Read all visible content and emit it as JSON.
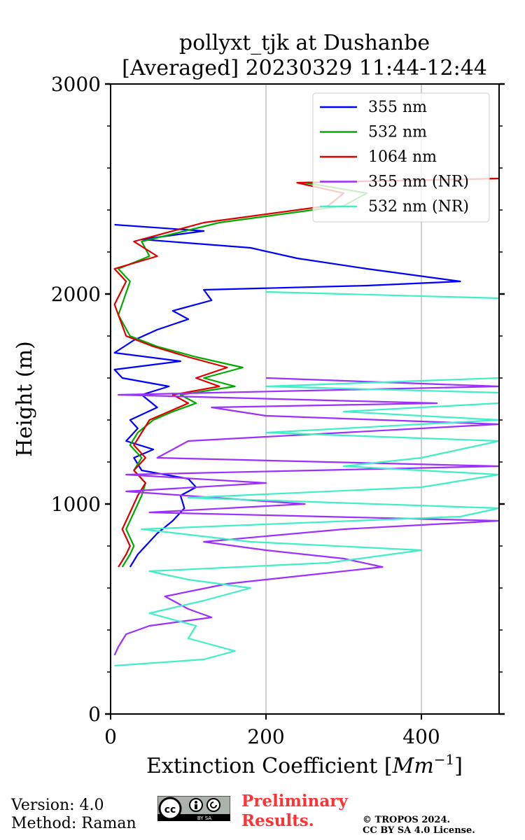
{
  "chart_data": {
    "type": "line",
    "title_line1": "pollyxt_tjk at Dushanbe",
    "title_line2": "[Averaged] 20230329 11:44-12:44",
    "xlabel": "Extinction Coefficient",
    "xlabel_unit_base": "Mm",
    "xlabel_unit_exp": "−1",
    "ylabel": "Height (m)",
    "xlim": [
      0,
      500
    ],
    "ylim": [
      0,
      3000
    ],
    "x_ticks": [
      "0",
      "200",
      "400"
    ],
    "x_tick_values": [
      0,
      200,
      400
    ],
    "y_ticks": [
      "0",
      "1000",
      "2000",
      "3000"
    ],
    "y_tick_values": [
      0,
      1000,
      2000,
      3000
    ],
    "grid": "vertical",
    "legend_position": "top-right",
    "series": [
      {
        "name": "355 nm",
        "color": "#0000ff",
        "points": [
          [
            25,
            700
          ],
          [
            35,
            760
          ],
          [
            45,
            800
          ],
          [
            60,
            860
          ],
          [
            80,
            920
          ],
          [
            95,
            980
          ],
          [
            90,
            1040
          ],
          [
            110,
            1080
          ],
          [
            100,
            1120
          ],
          [
            40,
            1160
          ],
          [
            30,
            1220
          ],
          [
            55,
            1260
          ],
          [
            20,
            1300
          ],
          [
            35,
            1360
          ],
          [
            25,
            1400
          ],
          [
            60,
            1460
          ],
          [
            40,
            1520
          ],
          [
            75,
            1560
          ],
          [
            15,
            1600
          ],
          [
            5,
            1640
          ],
          [
            90,
            1680
          ],
          [
            5,
            1720
          ],
          [
            30,
            1780
          ],
          [
            60,
            1830
          ],
          [
            100,
            1880
          ],
          [
            80,
            1920
          ],
          [
            130,
            1970
          ],
          [
            120,
            2020
          ],
          [
            330,
            2040
          ],
          [
            450,
            2060
          ],
          [
            330,
            2120
          ],
          [
            240,
            2170
          ],
          [
            180,
            2220
          ],
          [
            40,
            2260
          ],
          [
            120,
            2300
          ],
          [
            5,
            2330
          ]
        ]
      },
      {
        "name": "532 nm",
        "color": "#00aa00",
        "points": [
          [
            15,
            700
          ],
          [
            25,
            760
          ],
          [
            30,
            800
          ],
          [
            20,
            880
          ],
          [
            30,
            960
          ],
          [
            40,
            1040
          ],
          [
            45,
            1100
          ],
          [
            30,
            1160
          ],
          [
            40,
            1220
          ],
          [
            25,
            1280
          ],
          [
            35,
            1340
          ],
          [
            55,
            1400
          ],
          [
            80,
            1440
          ],
          [
            110,
            1480
          ],
          [
            90,
            1520
          ],
          [
            160,
            1560
          ],
          [
            120,
            1600
          ],
          [
            170,
            1650
          ],
          [
            110,
            1700
          ],
          [
            60,
            1750
          ],
          [
            25,
            1800
          ],
          [
            10,
            1900
          ],
          [
            25,
            2060
          ],
          [
            10,
            2120
          ],
          [
            50,
            2180
          ],
          [
            40,
            2250
          ],
          [
            140,
            2340
          ],
          [
            300,
            2420
          ],
          [
            330,
            2480
          ],
          [
            250,
            2530
          ],
          [
            500,
            2550
          ]
        ]
      },
      {
        "name": "1064 nm",
        "color": "#dd0000",
        "points": [
          [
            10,
            700
          ],
          [
            20,
            760
          ],
          [
            25,
            800
          ],
          [
            15,
            880
          ],
          [
            25,
            960
          ],
          [
            35,
            1040
          ],
          [
            45,
            1100
          ],
          [
            30,
            1160
          ],
          [
            45,
            1220
          ],
          [
            30,
            1280
          ],
          [
            40,
            1340
          ],
          [
            50,
            1400
          ],
          [
            75,
            1440
          ],
          [
            100,
            1480
          ],
          [
            80,
            1520
          ],
          [
            140,
            1560
          ],
          [
            110,
            1600
          ],
          [
            150,
            1650
          ],
          [
            100,
            1700
          ],
          [
            55,
            1750
          ],
          [
            20,
            1800
          ],
          [
            5,
            1950
          ],
          [
            20,
            2060
          ],
          [
            5,
            2120
          ],
          [
            60,
            2180
          ],
          [
            30,
            2250
          ],
          [
            120,
            2340
          ],
          [
            280,
            2420
          ],
          [
            300,
            2480
          ],
          [
            240,
            2530
          ],
          [
            500,
            2550
          ]
        ]
      },
      {
        "name": "355 nm (NR)",
        "color": "#9b30ff",
        "points": [
          [
            5,
            280
          ],
          [
            10,
            320
          ],
          [
            20,
            380
          ],
          [
            50,
            420
          ],
          [
            130,
            460
          ],
          [
            100,
            500
          ],
          [
            70,
            560
          ],
          [
            150,
            620
          ],
          [
            250,
            660
          ],
          [
            350,
            700
          ],
          [
            300,
            740
          ],
          [
            200,
            780
          ],
          [
            120,
            820
          ],
          [
            300,
            880
          ],
          [
            500,
            920
          ],
          [
            50,
            960
          ],
          [
            250,
            1000
          ],
          [
            20,
            1060
          ],
          [
            200,
            1100
          ],
          [
            20,
            1140
          ],
          [
            500,
            1180
          ],
          [
            60,
            1220
          ],
          [
            100,
            1300
          ],
          [
            300,
            1340
          ],
          [
            500,
            1380
          ],
          [
            200,
            1420
          ],
          [
            130,
            1460
          ],
          [
            420,
            1480
          ],
          [
            10,
            1520
          ],
          [
            500,
            1560
          ],
          [
            200,
            1600
          ]
        ]
      },
      {
        "name": "532 nm (NR)",
        "color": "#40eec8",
        "points": [
          [
            5,
            230
          ],
          [
            120,
            260
          ],
          [
            160,
            300
          ],
          [
            100,
            360
          ],
          [
            110,
            420
          ],
          [
            50,
            480
          ],
          [
            120,
            540
          ],
          [
            180,
            600
          ],
          [
            100,
            640
          ],
          [
            50,
            680
          ],
          [
            280,
            720
          ],
          [
            400,
            780
          ],
          [
            180,
            820
          ],
          [
            40,
            880
          ],
          [
            450,
            940
          ],
          [
            500,
            980
          ],
          [
            100,
            1030
          ],
          [
            400,
            1080
          ],
          [
            500,
            1140
          ],
          [
            300,
            1180
          ],
          [
            400,
            1220
          ],
          [
            450,
            1260
          ],
          [
            500,
            1300
          ],
          [
            200,
            1340
          ],
          [
            500,
            1400
          ],
          [
            300,
            1440
          ],
          [
            500,
            1480
          ],
          [
            500,
            1530
          ],
          [
            200,
            1560
          ],
          [
            500,
            1600
          ],
          [
            500,
            1860
          ],
          [
            500,
            1920
          ],
          [
            500,
            1950
          ],
          [
            500,
            1980
          ],
          [
            200,
            2010
          ]
        ]
      }
    ]
  },
  "footer": {
    "version": "Version: 4.0",
    "method": "Method: Raman",
    "cc_label": "cc",
    "cc_by_sa": "BY SA",
    "preliminary_line1": "Preliminary",
    "preliminary_line2": "Results.",
    "copyright_line1": "© TROPOS 2024.",
    "copyright_line2": "CC BY SA 4.0 License."
  }
}
